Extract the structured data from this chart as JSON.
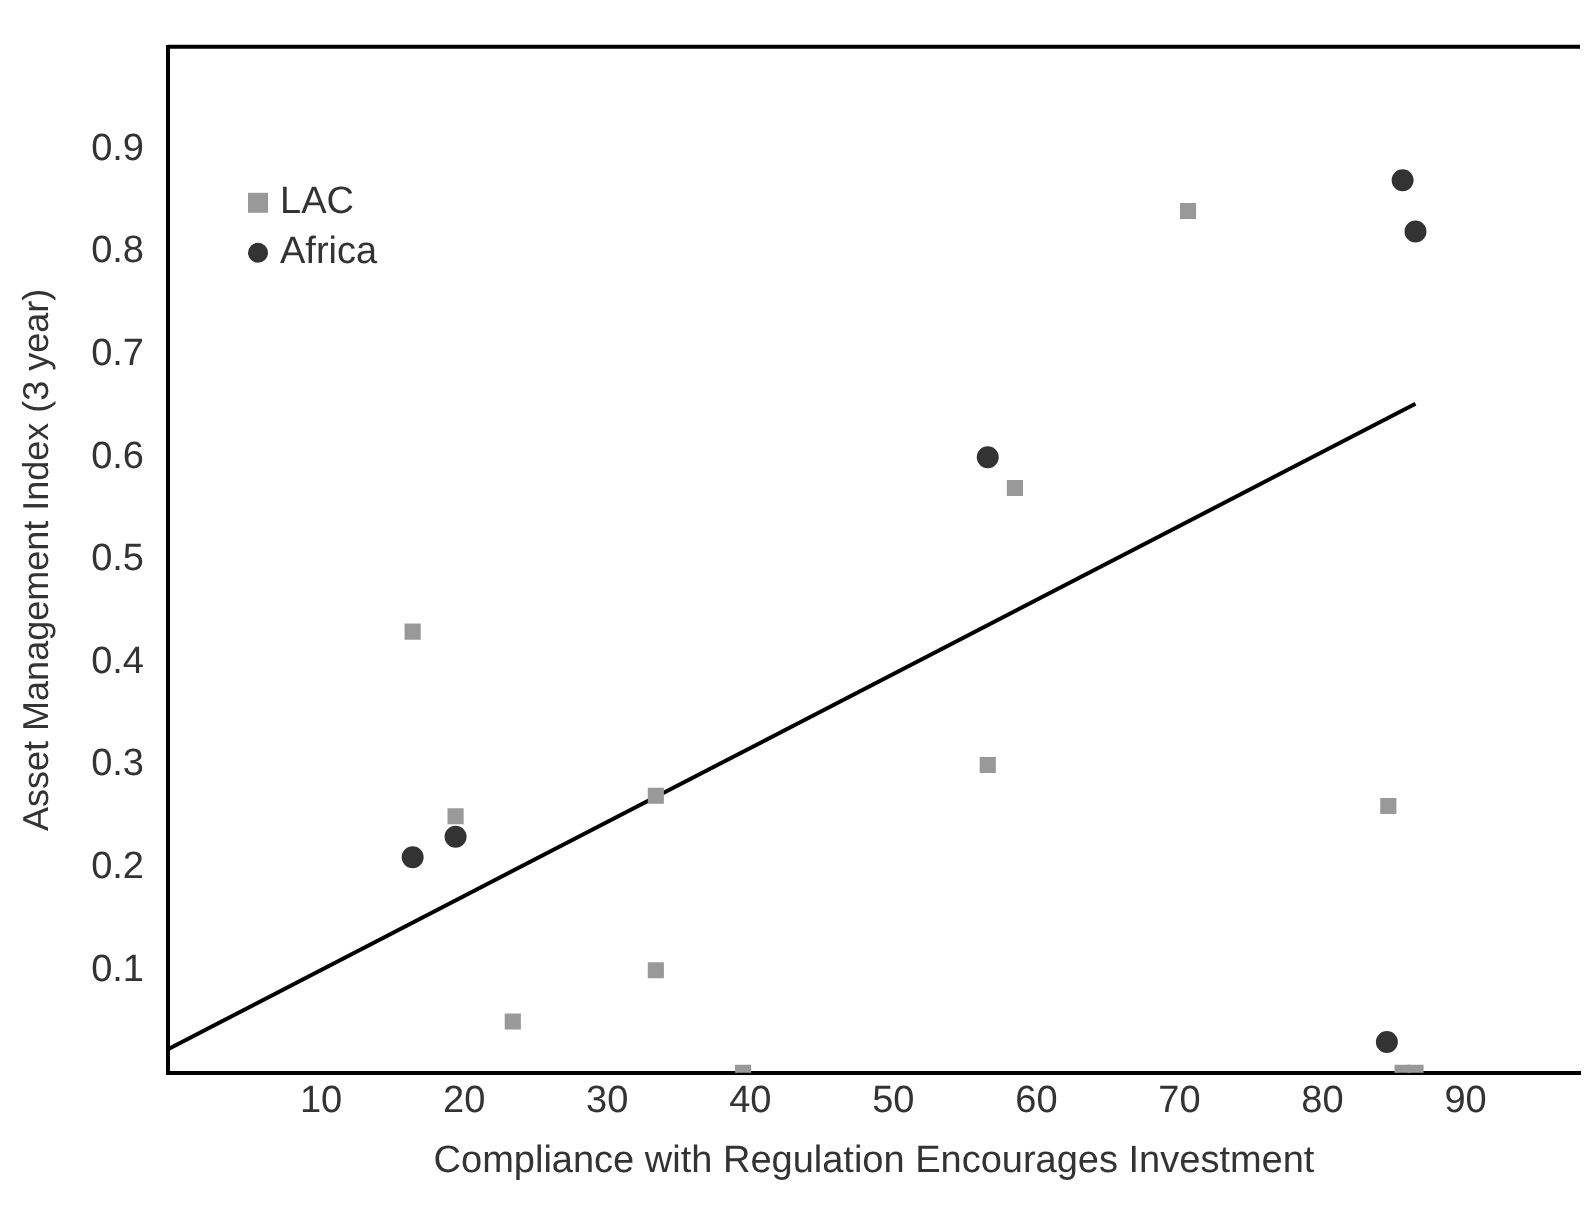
{
  "chart_data": {
    "type": "scatter",
    "xlabel": "Compliance with Regulation Encourages Investment",
    "ylabel": "Asset Management Index (3 year)",
    "xlim": [
      -0.7,
      98
    ],
    "xticks": [
      10,
      20,
      30,
      40,
      50,
      60,
      70,
      80,
      90
    ],
    "ylim": [
      0,
      1
    ],
    "yticks": [
      0.1,
      0.2,
      0.3,
      0.4,
      0.5,
      0.6,
      0.7,
      0.8,
      0.9
    ],
    "grid": false,
    "legend": "top left",
    "series": [
      {
        "name": "LAC",
        "type": "scatter",
        "marker": "square",
        "color": "#999999",
        "x": [
          16.4,
          19.4,
          23.4,
          33.4,
          33.4,
          39.5,
          70.6,
          58.5,
          56.6,
          84.6,
          85.6,
          86.5
        ],
        "values": [
          0.43,
          0.25,
          0.05,
          0.27,
          0.1,
          0.0,
          0.84,
          0.57,
          0.3,
          0.26,
          0.0,
          0.0
        ]
      },
      {
        "name": "Africa",
        "type": "scatter",
        "marker": "circle",
        "color": "#333333",
        "x": [
          16.4,
          19.4,
          56.6,
          85.6,
          86.5,
          84.5
        ],
        "values": [
          0.21,
          0.23,
          0.6,
          0.87,
          0.82,
          0.03
        ]
      },
      {
        "type": "line",
        "marker": "none",
        "color": "#000000",
        "x": [
          -0.7,
          86.5
        ],
        "values": [
          0.023,
          0.652
        ]
      }
    ]
  }
}
